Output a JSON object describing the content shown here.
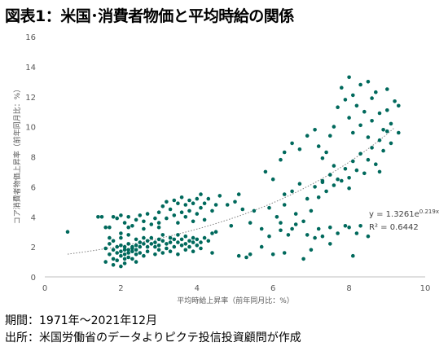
{
  "title": "図表1：米国･消費者物価と平均時給の関係",
  "footer": {
    "period": "期間：1971年～2021年12月",
    "source": "出所：米国労働省のデータよりピクテ投信投資顧問が作成"
  },
  "colors": {
    "points": "#00695c",
    "trend": "#808080",
    "axis": "#bfbfbf",
    "text": "#595959"
  },
  "chart_data": {
    "type": "scatter",
    "xlabel": "平均時給上昇率（前年同月比：%）",
    "ylabel": "コア消費者物価上昇率（前年同月比：%）",
    "xlim": [
      0,
      10
    ],
    "ylim": [
      0,
      16
    ],
    "xticks": [
      0,
      2,
      4,
      6,
      8,
      10
    ],
    "yticks": [
      0,
      2,
      4,
      6,
      8,
      10,
      12,
      14,
      16
    ],
    "grid": false,
    "trendline": {
      "type": "exponential",
      "a": 1.3261,
      "b": 0.219,
      "equation_prefix": "y = 1.3261e",
      "equation_exponent": "0.219x",
      "r2_label": "R² = 0.6442",
      "x_range": [
        0.6,
        9.2
      ]
    },
    "series": [
      {
        "points": [
          [
            0.6,
            3.0
          ],
          [
            1.6,
            1.9
          ],
          [
            1.6,
            1.0
          ],
          [
            1.7,
            2.2
          ],
          [
            1.7,
            1.5
          ],
          [
            1.8,
            1.8
          ],
          [
            1.8,
            1.2
          ],
          [
            1.8,
            0.8
          ],
          [
            1.9,
            2.0
          ],
          [
            1.9,
            1.6
          ],
          [
            1.9,
            1.1
          ],
          [
            2.0,
            2.1
          ],
          [
            2.0,
            1.7
          ],
          [
            2.0,
            1.4
          ],
          [
            2.0,
            0.7
          ],
          [
            2.1,
            2.0
          ],
          [
            2.1,
            1.8
          ],
          [
            2.1,
            1.5
          ],
          [
            2.1,
            1.2
          ],
          [
            2.1,
            0.9
          ],
          [
            2.2,
            2.2
          ],
          [
            2.2,
            1.8
          ],
          [
            2.2,
            1.6
          ],
          [
            2.2,
            1.3
          ],
          [
            2.3,
            2.0
          ],
          [
            2.3,
            1.9
          ],
          [
            2.3,
            1.7
          ],
          [
            2.3,
            1.2
          ],
          [
            2.4,
            2.1
          ],
          [
            2.4,
            1.8
          ],
          [
            2.4,
            1.5
          ],
          [
            2.4,
            1.0
          ],
          [
            2.5,
            2.3
          ],
          [
            2.5,
            2.0
          ],
          [
            2.5,
            1.6
          ],
          [
            1.7,
            2.6
          ],
          [
            1.8,
            2.4
          ],
          [
            2.0,
            2.6
          ],
          [
            2.2,
            2.8
          ],
          [
            2.4,
            2.5
          ],
          [
            2.6,
            2.2
          ],
          [
            2.6,
            2.6
          ],
          [
            2.7,
            2.4
          ],
          [
            2.7,
            2.0
          ],
          [
            2.8,
            2.2
          ],
          [
            2.8,
            2.6
          ],
          [
            2.9,
            2.3
          ],
          [
            2.9,
            2.0
          ],
          [
            3.0,
            2.5
          ],
          [
            3.0,
            2.1
          ],
          [
            3.0,
            1.8
          ],
          [
            3.1,
            2.4
          ],
          [
            3.1,
            2.8
          ],
          [
            3.2,
            2.2
          ],
          [
            3.2,
            1.9
          ],
          [
            3.3,
            2.6
          ],
          [
            3.3,
            2.3
          ],
          [
            3.4,
            2.0
          ],
          [
            3.4,
            2.5
          ],
          [
            3.5,
            2.3
          ],
          [
            3.5,
            2.8
          ],
          [
            3.6,
            2.1
          ],
          [
            3.6,
            2.5
          ],
          [
            3.7,
            2.2
          ],
          [
            3.7,
            2.7
          ],
          [
            3.8,
            2.4
          ],
          [
            3.8,
            2.0
          ],
          [
            3.9,
            2.6
          ],
          [
            3.9,
            2.3
          ],
          [
            4.0,
            2.5
          ],
          [
            4.0,
            2.1
          ],
          [
            4.1,
            2.3
          ],
          [
            4.2,
            2.6
          ],
          [
            4.3,
            2.4
          ],
          [
            4.4,
            2.9
          ],
          [
            4.5,
            3.0
          ],
          [
            2.6,
            1.4
          ],
          [
            2.7,
            1.7
          ],
          [
            2.9,
            1.5
          ],
          [
            3.1,
            1.6
          ],
          [
            3.3,
            1.7
          ],
          [
            3.5,
            1.5
          ],
          [
            3.7,
            1.8
          ],
          [
            3.9,
            1.7
          ],
          [
            4.1,
            1.9
          ],
          [
            4.4,
            1.6
          ],
          [
            1.5,
            4.0
          ],
          [
            1.7,
            3.3
          ],
          [
            1.8,
            4.0
          ],
          [
            1.9,
            3.9
          ],
          [
            2.0,
            4.1
          ],
          [
            2.1,
            3.6
          ],
          [
            2.2,
            4.0
          ],
          [
            2.3,
            3.4
          ],
          [
            2.4,
            3.8
          ],
          [
            2.5,
            4.1
          ],
          [
            2.6,
            3.7
          ],
          [
            2.7,
            4.2
          ],
          [
            2.8,
            3.5
          ],
          [
            2.9,
            3.9
          ],
          [
            3.0,
            4.3
          ],
          [
            3.0,
            3.6
          ],
          [
            3.1,
            4.7
          ],
          [
            3.2,
            5.0
          ],
          [
            3.2,
            3.9
          ],
          [
            3.3,
            4.5
          ],
          [
            3.4,
            5.1
          ],
          [
            3.4,
            4.1
          ],
          [
            3.5,
            3.6
          ],
          [
            3.5,
            4.9
          ],
          [
            3.6,
            4.3
          ],
          [
            3.6,
            5.3
          ],
          [
            3.7,
            4.0
          ],
          [
            3.7,
            4.8
          ],
          [
            3.8,
            5.1
          ],
          [
            3.8,
            4.4
          ],
          [
            3.9,
            3.7
          ],
          [
            3.9,
            4.9
          ],
          [
            4.0,
            5.2
          ],
          [
            4.0,
            4.2
          ],
          [
            4.1,
            4.6
          ],
          [
            4.1,
            5.5
          ],
          [
            4.2,
            3.8
          ],
          [
            4.2,
            4.9
          ],
          [
            4.3,
            5.2
          ],
          [
            4.4,
            4.4
          ],
          [
            4.5,
            4.8
          ],
          [
            4.6,
            5.4
          ],
          [
            4.8,
            4.8
          ],
          [
            5.0,
            5.0
          ],
          [
            5.1,
            5.5
          ],
          [
            5.2,
            4.5
          ],
          [
            5.4,
            3.6
          ],
          [
            5.5,
            4.4
          ],
          [
            4.9,
            3.4
          ],
          [
            1.4,
            4.0
          ],
          [
            1.6,
            3.3
          ],
          [
            2.0,
            2.9
          ],
          [
            2.2,
            3.3
          ],
          [
            2.6,
            3.2
          ],
          [
            3.0,
            3.3
          ],
          [
            5.1,
            1.4
          ],
          [
            5.3,
            1.3
          ],
          [
            5.4,
            1.5
          ],
          [
            5.7,
            2.0
          ],
          [
            6.0,
            1.5
          ],
          [
            6.8,
            1.2
          ],
          [
            8.1,
            1.4
          ],
          [
            5.7,
            3.2
          ],
          [
            5.9,
            4.6
          ],
          [
            6.1,
            4.0
          ],
          [
            6.2,
            3.6
          ],
          [
            6.3,
            4.8
          ],
          [
            6.3,
            5.5
          ],
          [
            6.5,
            3.2
          ],
          [
            6.5,
            5.7
          ],
          [
            6.6,
            4.2
          ],
          [
            6.7,
            6.2
          ],
          [
            6.8,
            3.7
          ],
          [
            6.9,
            5.2
          ],
          [
            7.0,
            4.4
          ],
          [
            7.1,
            6.0
          ],
          [
            7.2,
            5.3
          ],
          [
            7.2,
            3.2
          ],
          [
            7.3,
            6.3
          ],
          [
            7.3,
            2.7
          ],
          [
            7.4,
            5.7
          ],
          [
            7.5,
            3.3
          ],
          [
            7.6,
            6.1
          ],
          [
            7.7,
            2.9
          ],
          [
            7.8,
            6.4
          ],
          [
            7.9,
            3.4
          ],
          [
            8.0,
            5.9
          ],
          [
            5.8,
            7.0
          ],
          [
            6.0,
            6.5
          ],
          [
            6.2,
            7.8
          ],
          [
            6.3,
            8.3
          ],
          [
            6.5,
            8.9
          ],
          [
            6.7,
            8.5
          ],
          [
            6.9,
            9.4
          ],
          [
            7.1,
            9.8
          ],
          [
            7.2,
            8.7
          ],
          [
            7.3,
            7.9
          ],
          [
            7.4,
            8.3
          ],
          [
            7.5,
            9.4
          ],
          [
            7.6,
            10.0
          ],
          [
            7.7,
            11.3
          ],
          [
            7.8,
            12.6
          ],
          [
            7.9,
            11.8
          ],
          [
            8.0,
            10.6
          ],
          [
            8.0,
            13.3
          ],
          [
            8.1,
            12.1
          ],
          [
            8.1,
            9.6
          ],
          [
            8.2,
            11.4
          ],
          [
            8.3,
            12.8
          ],
          [
            8.3,
            10.1
          ],
          [
            8.4,
            11.0
          ],
          [
            8.5,
            13.0
          ],
          [
            8.5,
            9.3
          ],
          [
            8.6,
            11.9
          ],
          [
            8.6,
            10.4
          ],
          [
            8.7,
            12.3
          ],
          [
            8.8,
            10.9
          ],
          [
            8.9,
            9.8
          ],
          [
            9.0,
            12.5
          ],
          [
            9.0,
            11.1
          ],
          [
            9.1,
            10.2
          ],
          [
            9.2,
            11.7
          ],
          [
            9.3,
            9.6
          ],
          [
            9.3,
            11.4
          ],
          [
            7.3,
            6.4
          ],
          [
            7.5,
            6.8
          ],
          [
            7.6,
            7.4
          ],
          [
            7.7,
            6.5
          ],
          [
            7.9,
            7.2
          ],
          [
            8.0,
            6.6
          ],
          [
            8.1,
            7.7
          ],
          [
            8.2,
            7.1
          ],
          [
            8.3,
            8.2
          ],
          [
            8.5,
            7.8
          ],
          [
            8.6,
            8.6
          ],
          [
            8.7,
            7.5
          ],
          [
            8.8,
            9.1
          ],
          [
            8.9,
            8.4
          ],
          [
            9.0,
            9.7
          ],
          [
            9.1,
            8.9
          ],
          [
            8.4,
            6.9
          ],
          [
            8.8,
            7.0
          ],
          [
            8.0,
            3.3
          ],
          [
            8.2,
            2.9
          ],
          [
            8.3,
            3.4
          ],
          [
            8.5,
            2.7
          ],
          [
            7.0,
            1.8
          ],
          [
            7.5,
            2.2
          ],
          [
            6.6,
            3.5
          ],
          [
            5.9,
            2.7
          ],
          [
            6.2,
            3.1
          ],
          [
            6.4,
            2.8
          ],
          [
            6.3,
            1.6
          ],
          [
            6.9,
            2.8
          ],
          [
            7.1,
            2.6
          ]
        ]
      }
    ]
  }
}
